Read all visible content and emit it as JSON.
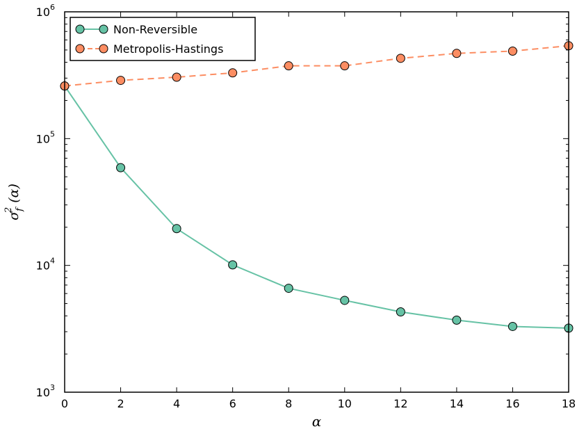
{
  "chart_data": {
    "type": "line",
    "title": "",
    "xlabel": "α",
    "ylabel": "σ_f^2 (α)",
    "x": [
      0,
      2,
      4,
      6,
      8,
      10,
      12,
      14,
      16,
      18
    ],
    "xlim": [
      0,
      18
    ],
    "ylim": [
      1000,
      1000000
    ],
    "yscale": "log",
    "x_ticks": [
      0,
      2,
      4,
      6,
      8,
      10,
      12,
      14,
      16,
      18
    ],
    "y_ticks": [
      {
        "value": 1000,
        "base": "10",
        "exp": "3"
      },
      {
        "value": 10000,
        "base": "10",
        "exp": "4"
      },
      {
        "value": 100000,
        "base": "10",
        "exp": "5"
      },
      {
        "value": 1000000,
        "base": "10",
        "exp": "6"
      }
    ],
    "grid": false,
    "legend_position": "top-left",
    "series": [
      {
        "name": "Non-Reversible",
        "color": "#66c2a5",
        "line_style": "solid",
        "marker": "circle",
        "values": [
          260000,
          59000,
          19500,
          10100,
          6600,
          5300,
          4300,
          3700,
          3300,
          3200
        ]
      },
      {
        "name": "Metropolis-Hastings",
        "color": "#fc8d62",
        "line_style": "dashed",
        "marker": "circle",
        "values": [
          260000,
          288000,
          305000,
          330000,
          375000,
          375000,
          430000,
          470000,
          490000,
          540000
        ]
      }
    ]
  }
}
